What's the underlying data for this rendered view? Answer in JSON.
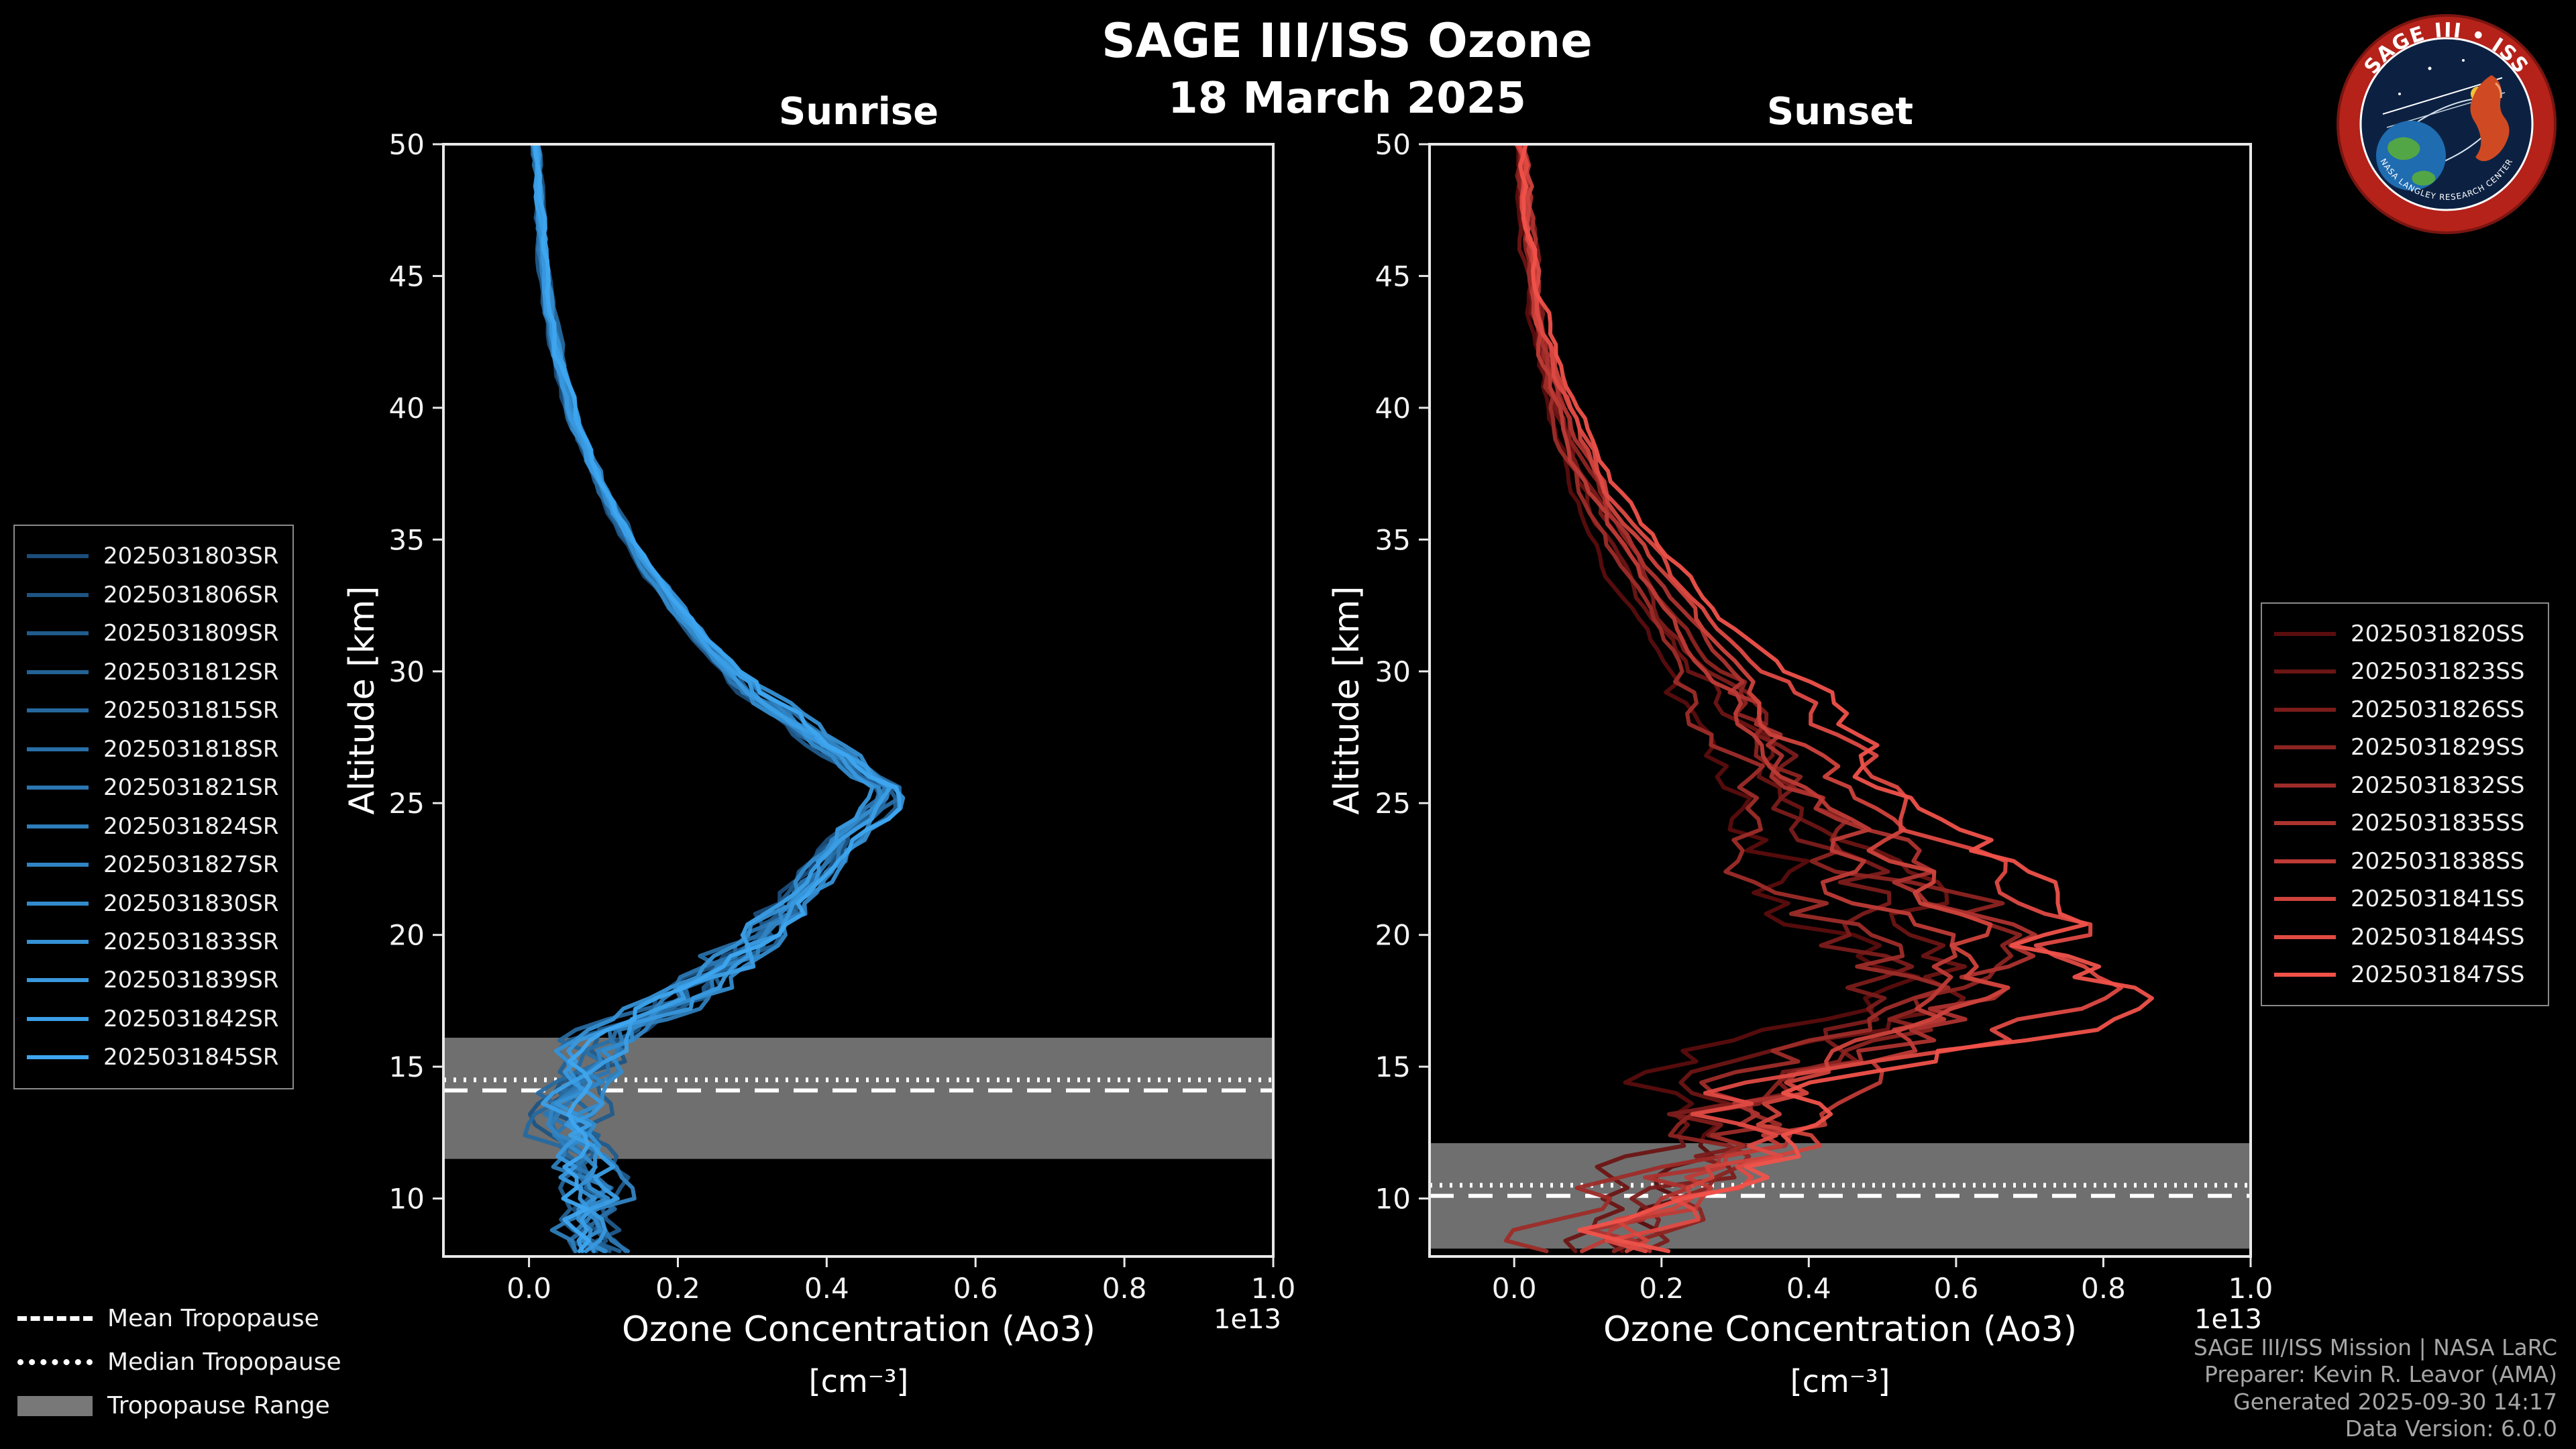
{
  "header": {
    "title": "SAGE III/ISS Ozone",
    "date": "18 March 2025"
  },
  "logo": {
    "title": "SAGE III • ISS",
    "ring_text": "NASA LANGLEY RESEARCH CENTER"
  },
  "footer": {
    "lines": [
      "SAGE III/ISS Mission | NASA LaRC",
      "Preparer: Kevin R. Leavor (AMA)",
      "Generated 2025-09-30 14:17",
      "Data Version: 6.0.0"
    ]
  },
  "tropopause_legend": {
    "items": [
      {
        "label": "Mean Tropopause",
        "style": "dashed"
      },
      {
        "label": "Median Tropopause",
        "style": "dotted"
      },
      {
        "label": "Tropopause Range",
        "style": "patch"
      }
    ]
  },
  "chart_data": [
    {
      "type": "line",
      "panel": "sunrise",
      "title": "Sunrise",
      "ylabel": "Altitude [km]",
      "xlabel_line1": "Ozone Concentration (Ao3)",
      "xlabel_line2": "[cm⁻³]",
      "x_offset_label": "1e13",
      "xlim": [
        -0.115,
        1.0
      ],
      "ylim": [
        7.8,
        50
      ],
      "x_ticks": [
        {
          "v": 0.0,
          "label": "0.0"
        },
        {
          "v": 0.2,
          "label": "0.2"
        },
        {
          "v": 0.4,
          "label": "0.4"
        },
        {
          "v": 0.6,
          "label": "0.6"
        },
        {
          "v": 0.8,
          "label": "0.8"
        },
        {
          "v": 1.0,
          "label": "1.0"
        }
      ],
      "y_ticks": [
        10,
        15,
        20,
        25,
        30,
        35,
        40,
        45,
        50
      ],
      "legend_position": "left",
      "grid": false,
      "tropopause": {
        "mean_km": 14.1,
        "median_km": 14.5,
        "range_km": [
          11.5,
          16.1
        ]
      },
      "base_profile": {
        "alt": [
          50,
          48,
          46,
          44,
          42,
          40,
          38,
          36,
          34,
          32,
          30,
          29,
          28,
          27,
          26,
          25.5,
          25,
          24,
          23,
          22,
          21,
          20,
          19,
          18,
          17,
          16.5,
          16,
          15,
          14,
          13,
          12,
          11,
          10,
          9,
          8
        ],
        "value": [
          0.008,
          0.012,
          0.018,
          0.026,
          0.038,
          0.055,
          0.08,
          0.115,
          0.16,
          0.21,
          0.27,
          0.31,
          0.36,
          0.41,
          0.46,
          0.49,
          0.48,
          0.44,
          0.41,
          0.38,
          0.35,
          0.32,
          0.27,
          0.23,
          0.17,
          0.13,
          0.1,
          0.08,
          0.06,
          0.05,
          0.07,
          0.08,
          0.09,
          0.07,
          0.09
        ]
      },
      "noise": {
        "high_amp": 0.004,
        "mid_amp": 0.012,
        "low_amp": 0.03,
        "mid_alt": 30,
        "low_alt": 21
      },
      "series": [
        {
          "name": "2025031803SR",
          "color": "#1b4d7a",
          "seed": 101,
          "scale": 0.96
        },
        {
          "name": "2025031806SR",
          "color": "#1e5483",
          "seed": 102,
          "scale": 1.0
        },
        {
          "name": "2025031809SR",
          "color": "#205b8c",
          "seed": 103,
          "scale": 0.97
        },
        {
          "name": "2025031812SR",
          "color": "#236295",
          "seed": 104,
          "scale": 1.02
        },
        {
          "name": "2025031815SR",
          "color": "#26689e",
          "seed": 105,
          "scale": 0.98
        },
        {
          "name": "2025031818SR",
          "color": "#286fa7",
          "seed": 106,
          "scale": 1.03
        },
        {
          "name": "2025031821SR",
          "color": "#2b76b1",
          "seed": 107,
          "scale": 0.965
        },
        {
          "name": "2025031824SR",
          "color": "#2e7db9",
          "seed": 108,
          "scale": 1.0
        },
        {
          "name": "2025031827SR",
          "color": "#3184c3",
          "seed": 109,
          "scale": 1.025
        },
        {
          "name": "2025031830SR",
          "color": "#338bcc",
          "seed": 110,
          "scale": 0.975
        },
        {
          "name": "2025031833SR",
          "color": "#3691d5",
          "seed": 111,
          "scale": 1.035
        },
        {
          "name": "2025031839SR",
          "color": "#3998de",
          "seed": 112,
          "scale": 0.99
        },
        {
          "name": "2025031842SR",
          "color": "#3b9fe7",
          "seed": 113,
          "scale": 1.01
        },
        {
          "name": "2025031845SR",
          "color": "#3ea6f0",
          "seed": 114,
          "scale": 1.04
        }
      ]
    },
    {
      "type": "line",
      "panel": "sunset",
      "title": "Sunset",
      "ylabel": "Altitude [km]",
      "xlabel_line1": "Ozone Concentration (Ao3)",
      "xlabel_line2": "[cm⁻³]",
      "x_offset_label": "1e13",
      "xlim": [
        -0.115,
        1.0
      ],
      "ylim": [
        7.8,
        50
      ],
      "x_ticks": [
        {
          "v": 0.0,
          "label": "0.0"
        },
        {
          "v": 0.2,
          "label": "0.2"
        },
        {
          "v": 0.4,
          "label": "0.4"
        },
        {
          "v": 0.6,
          "label": "0.6"
        },
        {
          "v": 0.8,
          "label": "0.8"
        },
        {
          "v": 1.0,
          "label": "1.0"
        }
      ],
      "y_ticks": [
        10,
        15,
        20,
        25,
        30,
        35,
        40,
        45,
        50
      ],
      "legend_position": "right",
      "grid": false,
      "tropopause": {
        "mean_km": 10.1,
        "median_km": 10.5,
        "range_km": [
          8.1,
          12.1
        ]
      },
      "base_profile": {
        "alt": [
          50,
          48,
          46,
          44,
          42,
          40,
          38,
          36,
          34,
          32,
          30,
          28,
          26,
          24,
          23,
          22,
          21,
          20,
          19,
          18,
          17,
          16,
          15,
          14,
          13,
          12,
          11,
          10,
          9,
          8
        ],
        "value": [
          0.008,
          0.014,
          0.02,
          0.03,
          0.045,
          0.065,
          0.09,
          0.125,
          0.17,
          0.22,
          0.28,
          0.33,
          0.38,
          0.45,
          0.5,
          0.54,
          0.57,
          0.6,
          0.59,
          0.61,
          0.55,
          0.5,
          0.42,
          0.33,
          0.27,
          0.3,
          0.24,
          0.18,
          0.14,
          0.12
        ]
      },
      "noise": {
        "high_amp": 0.006,
        "mid_amp": 0.03,
        "low_amp": 0.07,
        "mid_alt": 30,
        "low_alt": 24
      },
      "series": [
        {
          "name": "2025031820SS",
          "color": "#5a0d0d",
          "seed": 201,
          "scale": 0.75
        },
        {
          "name": "2025031823SS",
          "color": "#6b1514",
          "seed": 202,
          "scale": 0.85
        },
        {
          "name": "2025031826SS",
          "color": "#7b1c1b",
          "seed": 203,
          "scale": 0.9
        },
        {
          "name": "2025031829SS",
          "color": "#8c2421",
          "seed": 204,
          "scale": 1.0
        },
        {
          "name": "2025031832SS",
          "color": "#9d2c28",
          "seed": 205,
          "scale": 0.82
        },
        {
          "name": "2025031835SS",
          "color": "#ad332f",
          "seed": 206,
          "scale": 1.05
        },
        {
          "name": "2025031838SS",
          "color": "#be3b36",
          "seed": 207,
          "scale": 0.95
        },
        {
          "name": "2025031841SS",
          "color": "#cf433c",
          "seed": 208,
          "scale": 1.1
        },
        {
          "name": "2025031844SS",
          "color": "#df4a43",
          "seed": 209,
          "scale": 1.18
        },
        {
          "name": "2025031847SS",
          "color": "#f0524a",
          "seed": 210,
          "scale": 1.3
        }
      ]
    }
  ]
}
